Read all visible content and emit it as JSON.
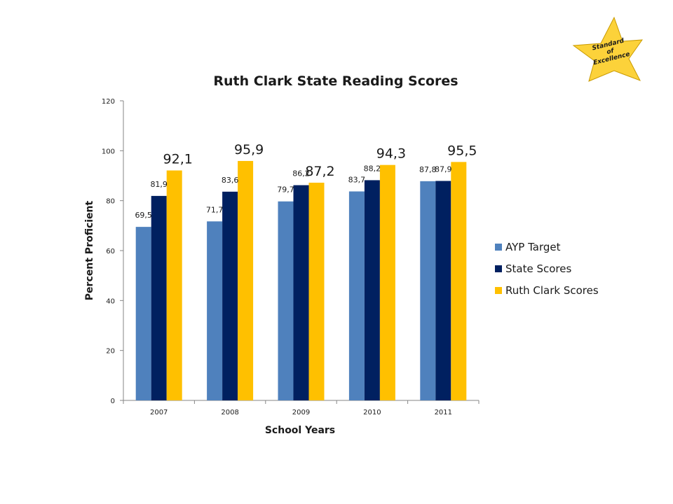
{
  "badge": {
    "lines": [
      "Standard",
      "of",
      "Excellence"
    ],
    "color": "#fcd23a"
  },
  "chart_data": {
    "type": "bar",
    "title": "Ruth Clark State Reading Scores",
    "xlabel": "School Years",
    "ylabel": "Percent Proficient",
    "categories": [
      "2007",
      "2008",
      "2009",
      "2010",
      "2011"
    ],
    "ylim": [
      0,
      120
    ],
    "yticks": [
      0,
      20,
      40,
      60,
      80,
      100,
      120
    ],
    "grid": false,
    "legend_position": "right",
    "series": [
      {
        "name": "AYP Target",
        "color": "#4f81bd",
        "values": [
          69.5,
          71.7,
          79.7,
          83.7,
          87.8
        ],
        "labels": [
          "69,5",
          "71,7",
          "79,7",
          "83,7",
          "87,8"
        ]
      },
      {
        "name": "State Scores",
        "color": "#002060",
        "values": [
          81.9,
          83.6,
          86.2,
          88.2,
          87.9
        ],
        "labels": [
          "81,9",
          "83,6",
          "86,2",
          "88,2",
          "87,9"
        ]
      },
      {
        "name": "Ruth Clark Scores",
        "color": "#ffc000",
        "values": [
          92.1,
          95.9,
          87.2,
          94.3,
          95.5
        ],
        "labels": [
          "92,1",
          "95,9",
          "87,2",
          "94,3",
          "95,5"
        ]
      }
    ]
  }
}
